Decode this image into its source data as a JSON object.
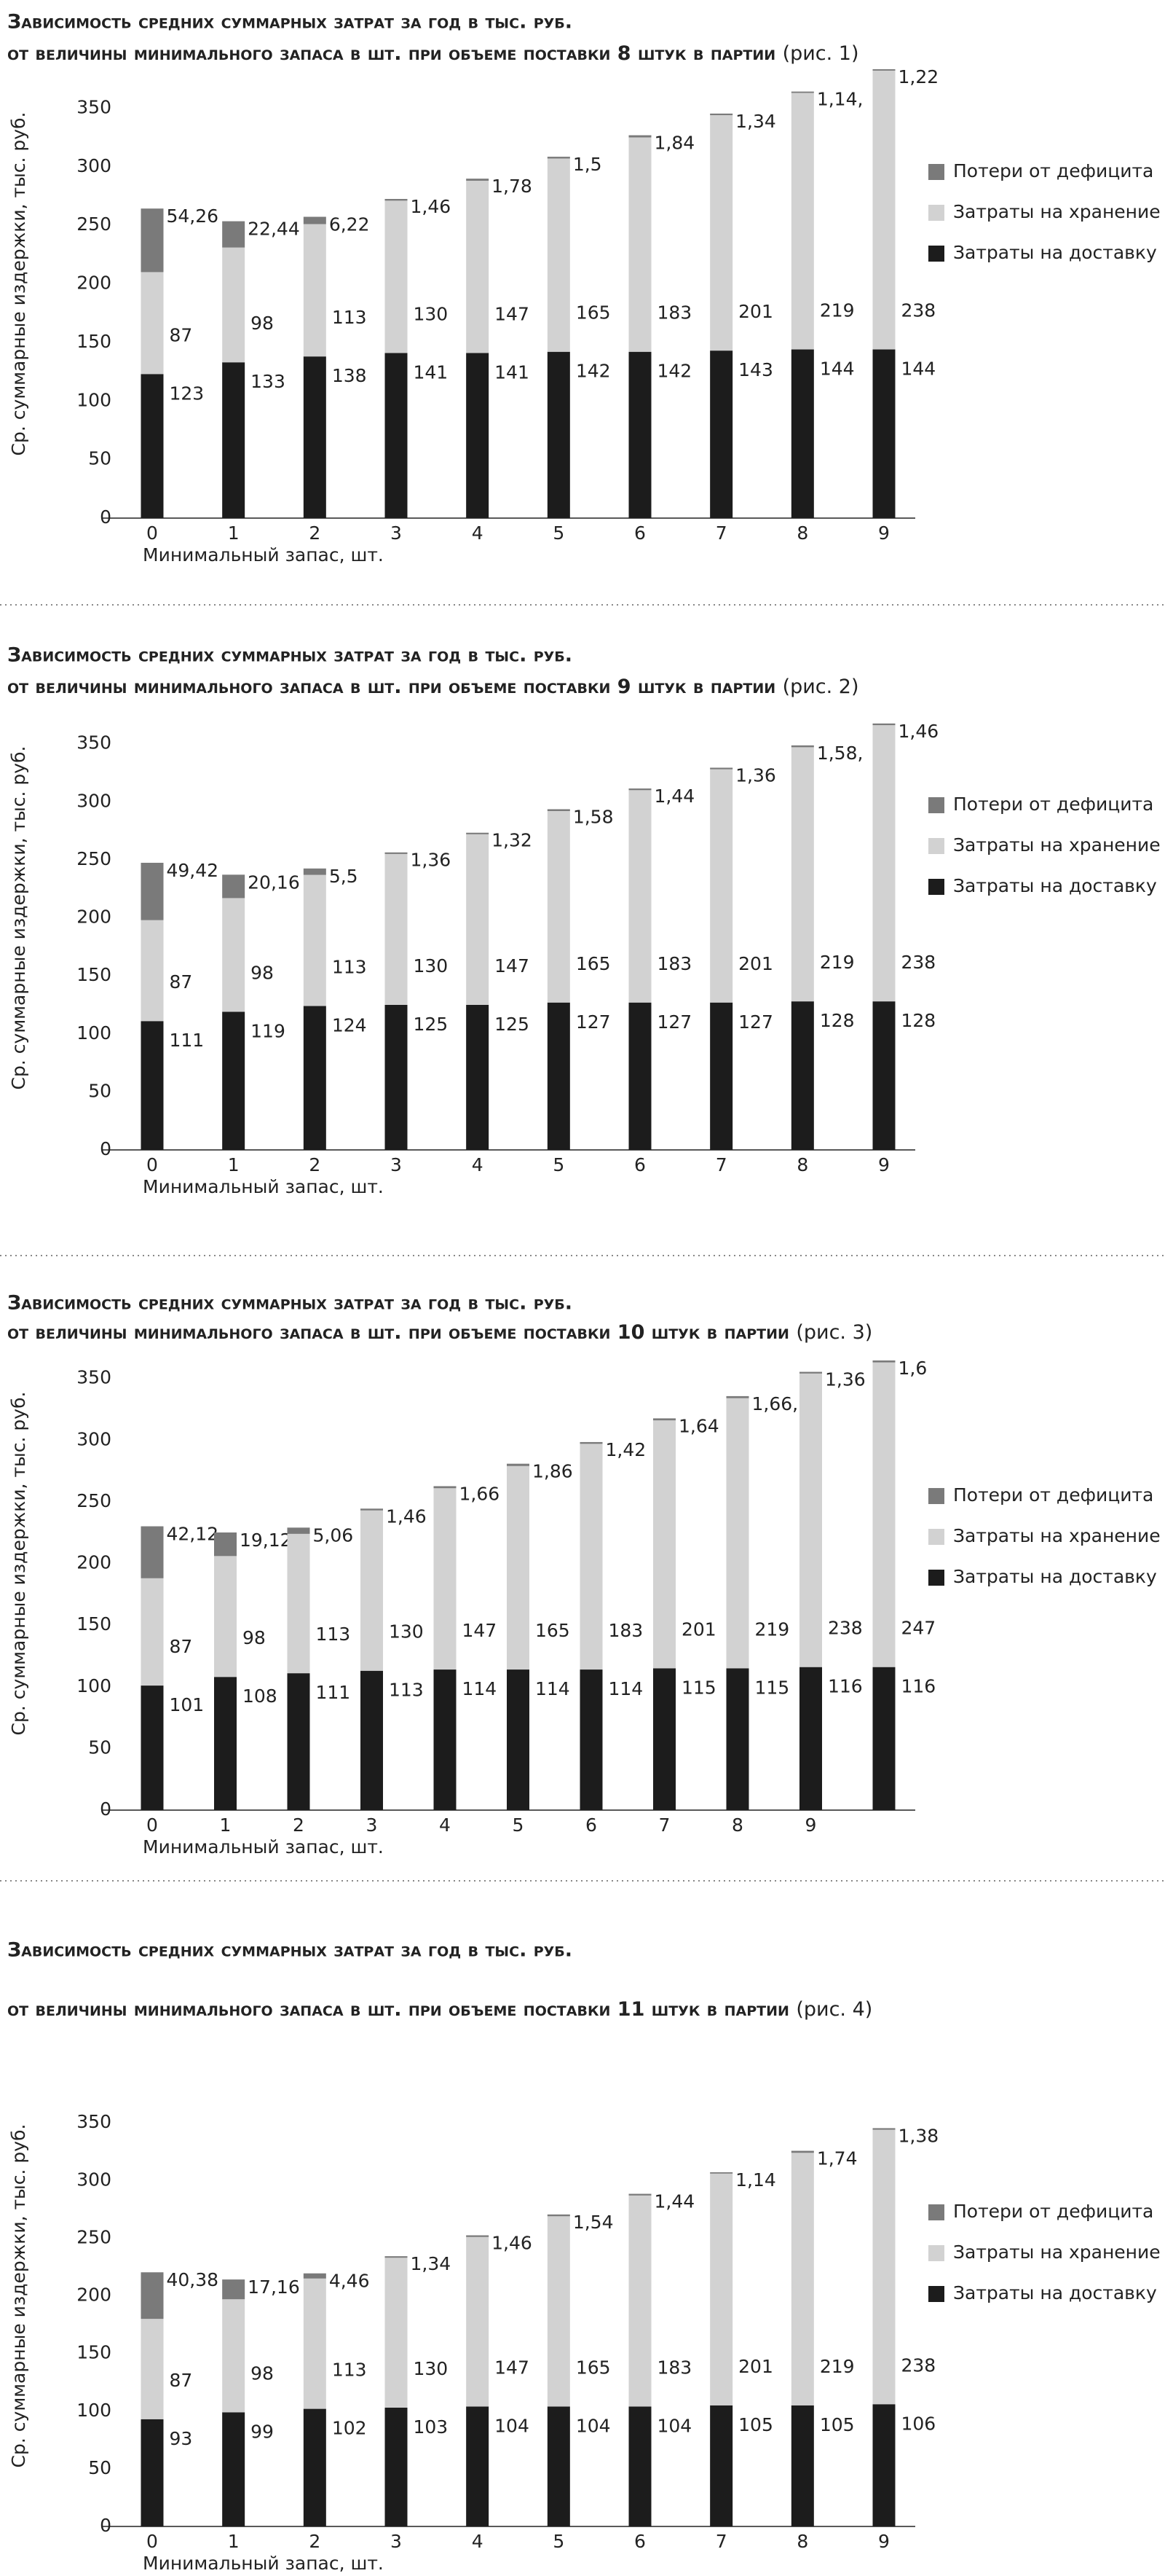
{
  "chart_data": [
    {
      "type": "bar",
      "stacked": true,
      "title": "Зависимость средних суммарных затрат за год в тыс. руб.",
      "subtitle": "от величины минимального запаса в шт. при объеме поставки 8 штук в партии",
      "figure_label": "(рис. 1)",
      "x_label": "Минимальный запас, шт.",
      "y_label": "Ср. суммарные издержки, тыс. руб.",
      "categories": [
        0,
        1,
        2,
        3,
        4,
        5,
        6,
        7,
        8,
        9
      ],
      "series": [
        {
          "name": "Затраты на доставку",
          "color": "#1c1c1c",
          "values": [
            123,
            133,
            138,
            141,
            141,
            142,
            142,
            143,
            144,
            144
          ]
        },
        {
          "name": "Затраты на хранение",
          "color": "#d2d2d2",
          "values": [
            87,
            98,
            113,
            130,
            147,
            165,
            183,
            201,
            219,
            238
          ]
        },
        {
          "name": "Потери от дефицита",
          "color": "#7a7a7a",
          "values": [
            54.26,
            22.44,
            6.22,
            1.46,
            1.78,
            1.5,
            1.84,
            1.34,
            1.14,
            1.22
          ],
          "value_labels": [
            "54,26",
            "22,44",
            "6,22",
            "1,46",
            "1,78",
            "1,5",
            "1,84",
            "1,34",
            "1,14,",
            "1,22"
          ]
        }
      ],
      "ylim": [
        0,
        400
      ],
      "yticks": [
        0,
        50,
        100,
        150,
        200,
        250,
        300,
        350
      ],
      "legend": "right"
    },
    {
      "type": "bar",
      "stacked": true,
      "title": "Зависимость средних суммарных затрат за год в тыс. руб.",
      "subtitle": "от величины минимального запаса в шт. при объеме поставки 9 штук в партии",
      "figure_label": "(рис. 2)",
      "x_label": "Минимальный запас, шт.",
      "y_label": "Ср. суммарные издержки, тыс. руб.",
      "categories": [
        0,
        1,
        2,
        3,
        4,
        5,
        6,
        7,
        8,
        9
      ],
      "series": [
        {
          "name": "Затраты на доставку",
          "color": "#1c1c1c",
          "values": [
            111,
            119,
            124,
            125,
            125,
            127,
            127,
            127,
            128,
            128
          ]
        },
        {
          "name": "Затраты на хранение",
          "color": "#d2d2d2",
          "values": [
            87,
            98,
            113,
            130,
            147,
            165,
            183,
            201,
            219,
            238
          ]
        },
        {
          "name": "Потери от дефицита",
          "color": "#7a7a7a",
          "values": [
            49.42,
            20.16,
            5.5,
            1.36,
            1.32,
            1.58,
            1.44,
            1.36,
            1.58,
            1.46
          ],
          "value_labels": [
            "49,42",
            "20,16",
            "5,5",
            "1,36",
            "1,32",
            "1,58",
            "1,44",
            "1,36",
            "1,58,",
            "1,46"
          ]
        }
      ],
      "ylim": [
        0,
        400
      ],
      "yticks": [
        0,
        50,
        100,
        150,
        200,
        250,
        300,
        350
      ],
      "legend": "right"
    },
    {
      "type": "bar",
      "stacked": true,
      "title": "Зависимость средних суммарных затрат за год в тыс. руб.",
      "subtitle": "от величины минимального запаса в шт. при объеме поставки 10 штук в партии",
      "figure_label": "(рис. 3)",
      "x_label": "Минимальный запас, шт.",
      "y_label": "Ср. суммарные издержки, тыс. руб.",
      "categories": [
        0,
        1,
        2,
        3,
        4,
        5,
        6,
        7,
        8,
        9,
        null
      ],
      "series": [
        {
          "name": "Затраты на доставку",
          "color": "#1c1c1c",
          "values": [
            101,
            108,
            111,
            113,
            114,
            114,
            114,
            115,
            115,
            116,
            116
          ]
        },
        {
          "name": "Затраты на хранение",
          "color": "#d2d2d2",
          "values": [
            87,
            98,
            113,
            130,
            147,
            165,
            183,
            201,
            219,
            238,
            247
          ]
        },
        {
          "name": "Потери от дефицита",
          "color": "#7a7a7a",
          "values": [
            42.12,
            19.12,
            5.06,
            1.46,
            1.66,
            1.86,
            1.42,
            1.64,
            1.66,
            1.36,
            1.6
          ],
          "value_labels": [
            "42,12",
            "19,12",
            "5,06",
            "1,46",
            "1,66",
            "1,86",
            "1,42",
            "1,64",
            "1,66,",
            "1,36",
            "1,6"
          ]
        }
      ],
      "ylim": [
        0,
        400
      ],
      "yticks": [
        0,
        50,
        100,
        150,
        200,
        250,
        300,
        350
      ],
      "legend": "right"
    },
    {
      "type": "bar",
      "stacked": true,
      "title": "Зависимость средних суммарных затрат за год в тыс. руб.",
      "subtitle": "от величины минимального запаса в шт. при объеме поставки 11 штук в партии",
      "figure_label": "(рис. 4)",
      "x_label": "Минимальный запас, шт.",
      "y_label": "Ср. суммарные издержки, тыс. руб.",
      "categories": [
        0,
        1,
        2,
        3,
        4,
        5,
        6,
        7,
        8,
        9
      ],
      "series": [
        {
          "name": "Затраты на доставку",
          "color": "#1c1c1c",
          "values": [
            93,
            99,
            102,
            103,
            104,
            104,
            104,
            105,
            105,
            106
          ]
        },
        {
          "name": "Затраты на хранение",
          "color": "#d2d2d2",
          "values": [
            87,
            98,
            113,
            130,
            147,
            165,
            183,
            201,
            219,
            238
          ]
        },
        {
          "name": "Потери от дефицита",
          "color": "#7a7a7a",
          "values": [
            40.38,
            17.16,
            4.46,
            1.34,
            1.46,
            1.54,
            1.44,
            1.14,
            1.74,
            1.38
          ],
          "value_labels": [
            "40,38",
            "17,16",
            "4,46",
            "1,34",
            "1,46",
            "1,54",
            "1,44",
            "1,14",
            "1,74",
            "1,38"
          ]
        }
      ],
      "ylim": [
        0,
        400
      ],
      "yticks": [
        0,
        50,
        100,
        150,
        200,
        250,
        300,
        350
      ],
      "legend": "right"
    }
  ]
}
